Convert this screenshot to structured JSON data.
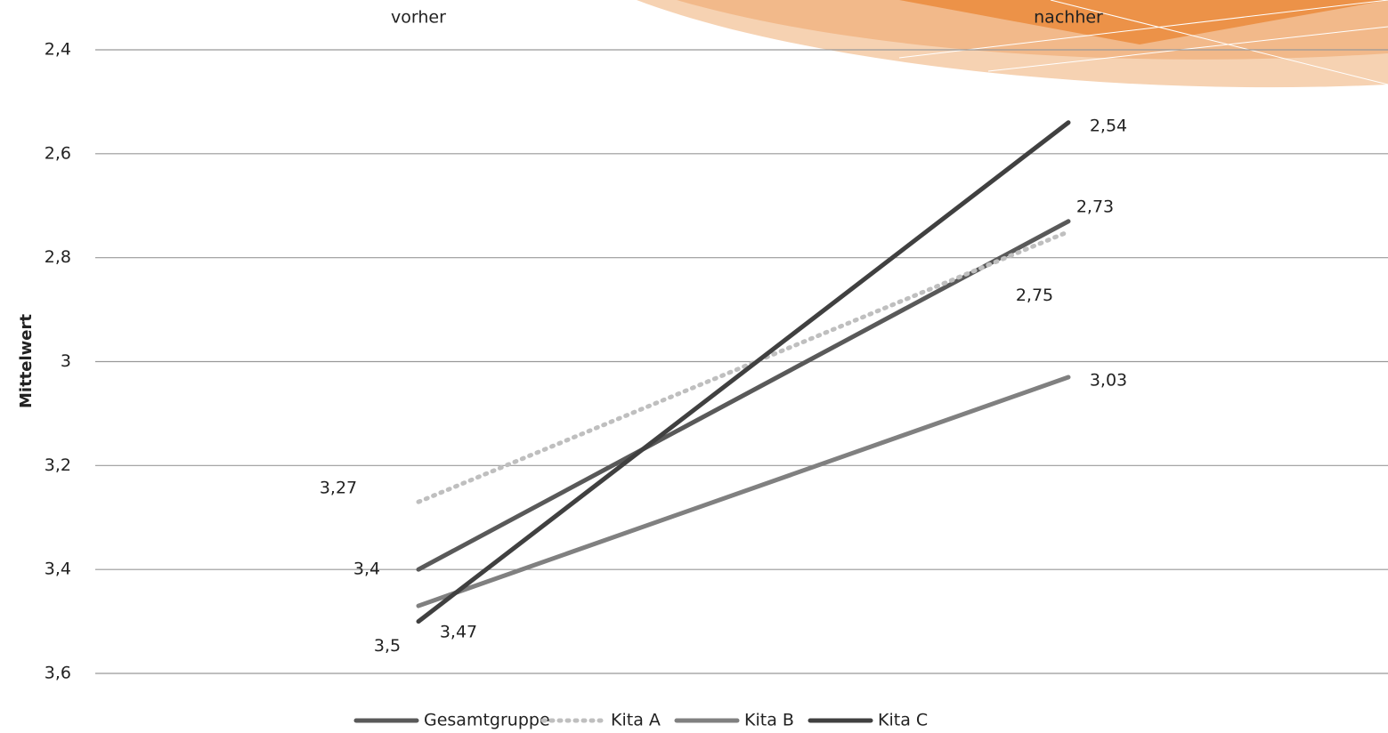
{
  "chart_data": {
    "type": "line",
    "categories": [
      "vorher",
      "nachher"
    ],
    "y_label": "Mittelwert",
    "ylim": [
      3.6,
      2.4
    ],
    "yticks": [
      {
        "value": 2.4,
        "label": "2,4"
      },
      {
        "value": 2.6,
        "label": "2,6"
      },
      {
        "value": 2.8,
        "label": "2,8"
      },
      3,
      {
        "value": 3.2,
        "label": "3,2"
      },
      {
        "value": 3.4,
        "label": "3,4"
      },
      {
        "value": 3.6,
        "label": "3,6"
      }
    ],
    "grid": true,
    "legend": "bottom",
    "series": [
      {
        "name": "Gesamtgruppe",
        "color": "#595959",
        "dash": "solid",
        "values": [
          3.4,
          2.73
        ],
        "value_labels": [
          "3,4",
          "2,73"
        ]
      },
      {
        "name": "Kita A",
        "color": "#bfbfbf",
        "dash": "dotted",
        "values": [
          3.27,
          2.75
        ],
        "value_labels": [
          "3,27",
          "2,75"
        ]
      },
      {
        "name": "Kita B",
        "color": "#808080",
        "dash": "solid",
        "values": [
          3.47,
          3.03
        ],
        "value_labels": [
          "3,47",
          "3,03"
        ]
      },
      {
        "name": "Kita C",
        "color": "#404040",
        "dash": "solid",
        "values": [
          3.5,
          2.54
        ],
        "value_labels": [
          "3,5",
          "2,54"
        ]
      }
    ]
  }
}
